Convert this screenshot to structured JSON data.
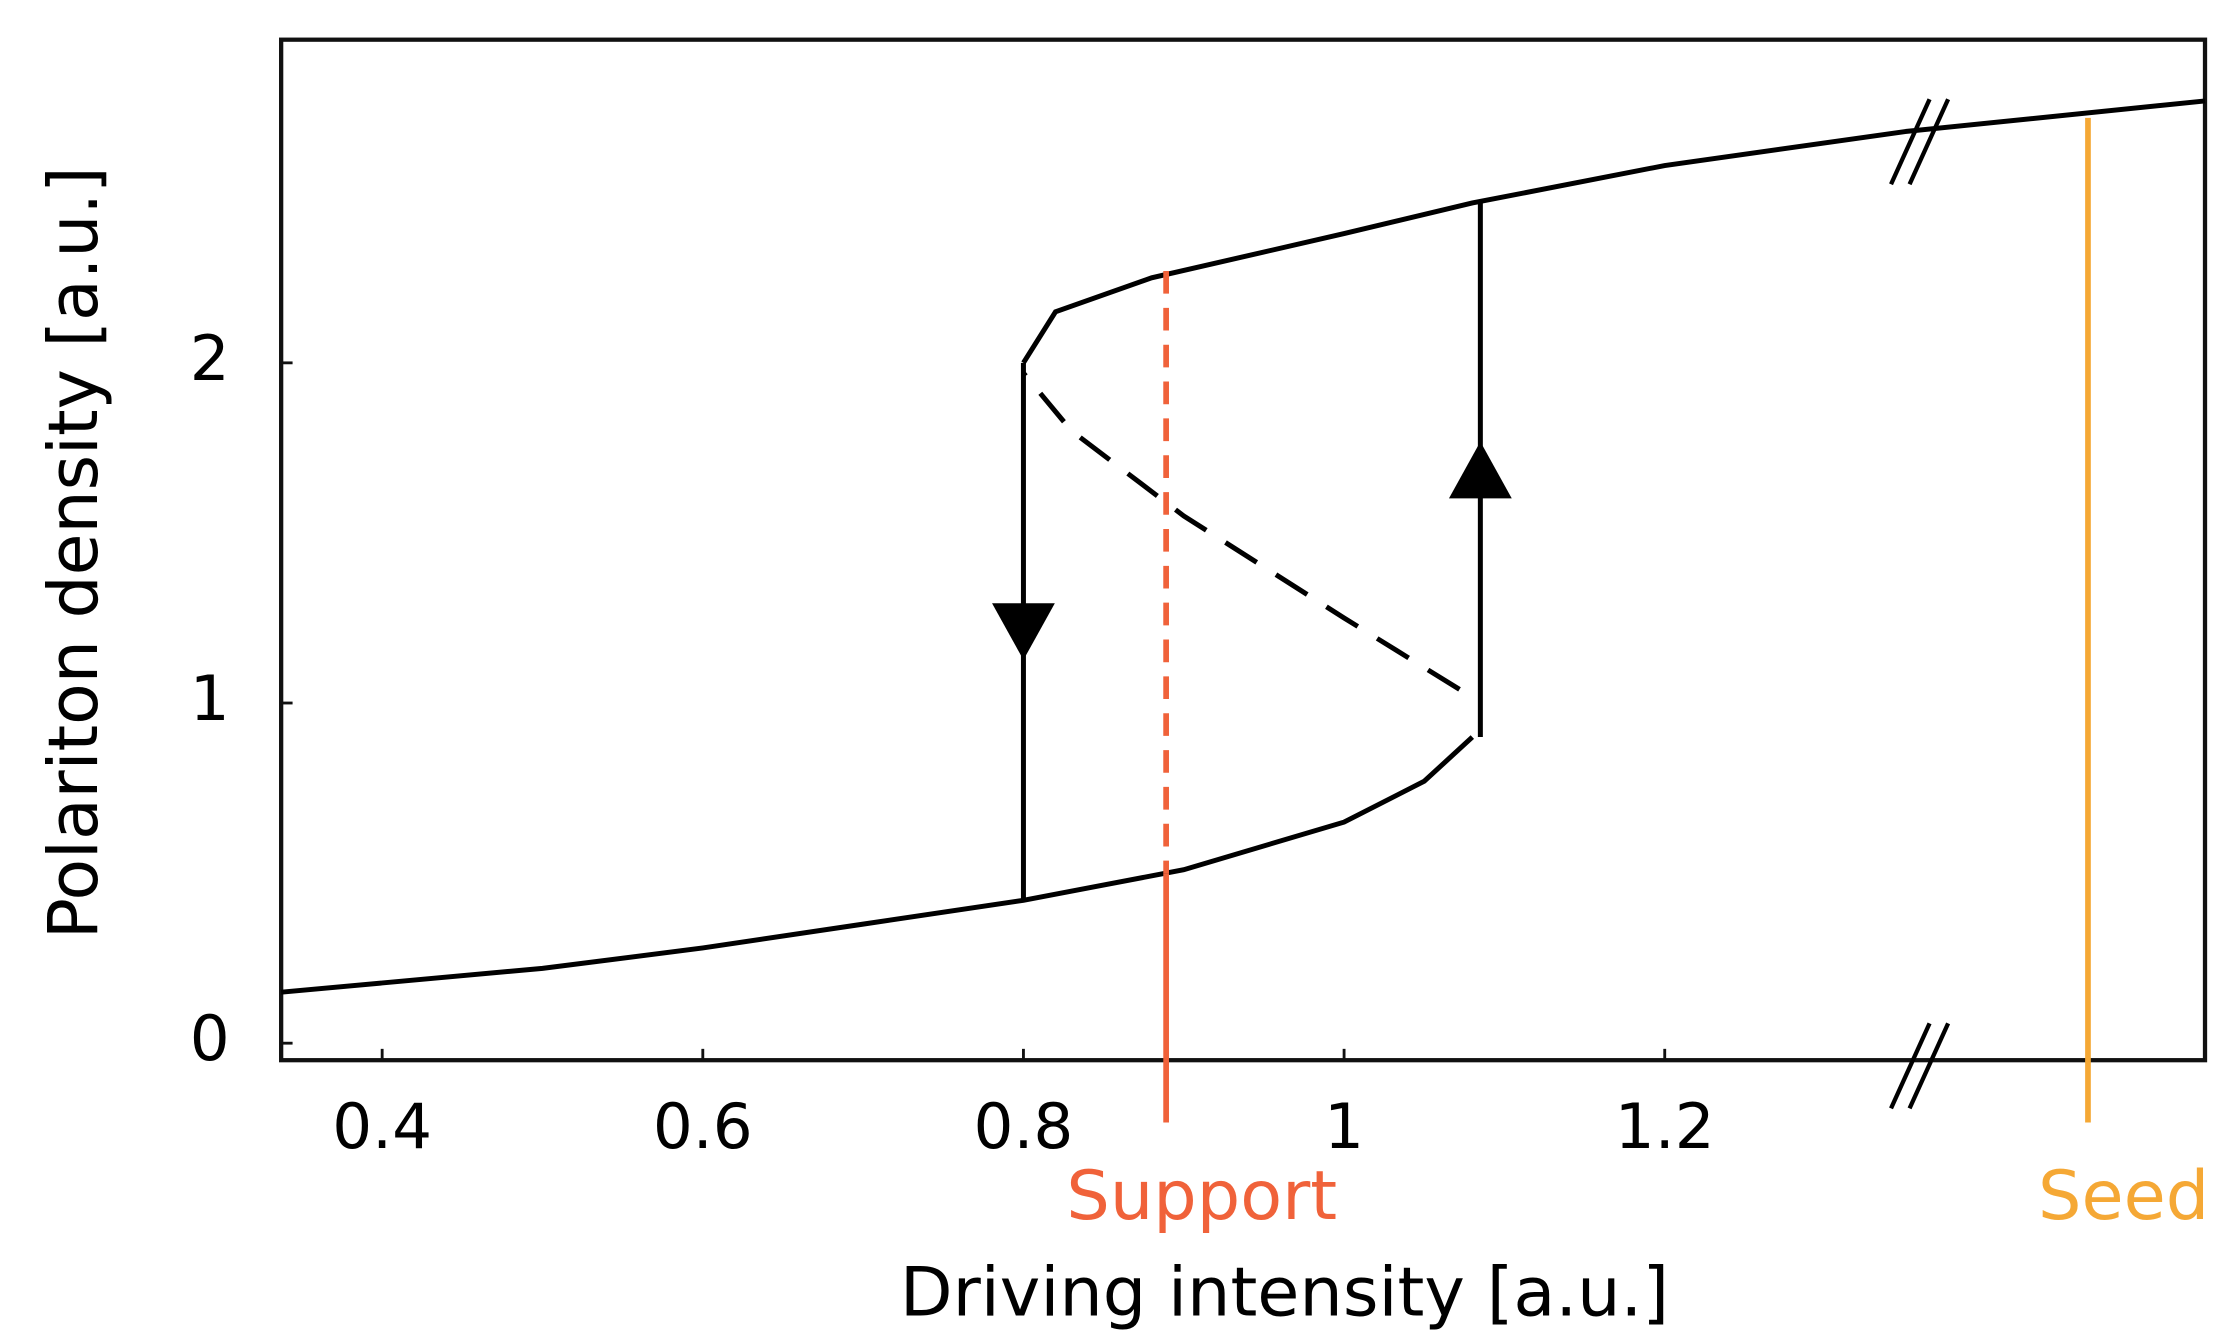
{
  "chart_data": {
    "type": "line",
    "x_label": "Driving intensity [a.u.]",
    "y_label": "Polariton density [a.u.]",
    "xlim": [
      0.337,
      1.537
    ],
    "ylim": [
      -0.05,
      2.95
    ],
    "xticks": [
      0.4,
      0.6,
      0.8,
      1,
      1.2
    ],
    "yticks": [
      0,
      1,
      2
    ],
    "series": [
      {
        "color": "#000000",
        "dash": false,
        "x": [
          0.337,
          0.5,
          0.6,
          0.7,
          0.8,
          0.9,
          1.0,
          1.05,
          1.08
        ],
        "values": [
          0.15,
          0.22,
          0.28,
          0.35,
          0.42,
          0.51,
          0.65,
          0.77,
          0.9
        ]
      },
      {
        "color": "#000000",
        "dash": true,
        "x": [
          1.072,
          1.0,
          0.9,
          0.83,
          0.8
        ],
        "values": [
          1.04,
          1.25,
          1.55,
          1.8,
          1.97
        ]
      },
      {
        "color": "#000000",
        "dash": false,
        "x": [
          0.8,
          0.82,
          0.88,
          1.0,
          1.08,
          1.2,
          1.35,
          1.537
        ],
        "values": [
          2.0,
          2.15,
          2.25,
          2.38,
          2.47,
          2.58,
          2.68,
          2.77
        ]
      },
      {
        "color": "#000000",
        "dash": false,
        "arrow": "down",
        "x": [
          0.8,
          0.8
        ],
        "values": [
          2.0,
          0.42
        ]
      },
      {
        "color": "#000000",
        "dash": false,
        "arrow": "up",
        "x": [
          1.085,
          1.085
        ],
        "values": [
          0.9,
          2.47
        ]
      }
    ],
    "markers": [
      {
        "name": "Support",
        "x": 0.889,
        "color": "#f0623a",
        "top": 2.27,
        "dash_to": 0.5
      },
      {
        "name": "Seed",
        "x": 1.464,
        "color": "#f5a835",
        "top": 2.72,
        "dash_to": null
      }
    ]
  }
}
